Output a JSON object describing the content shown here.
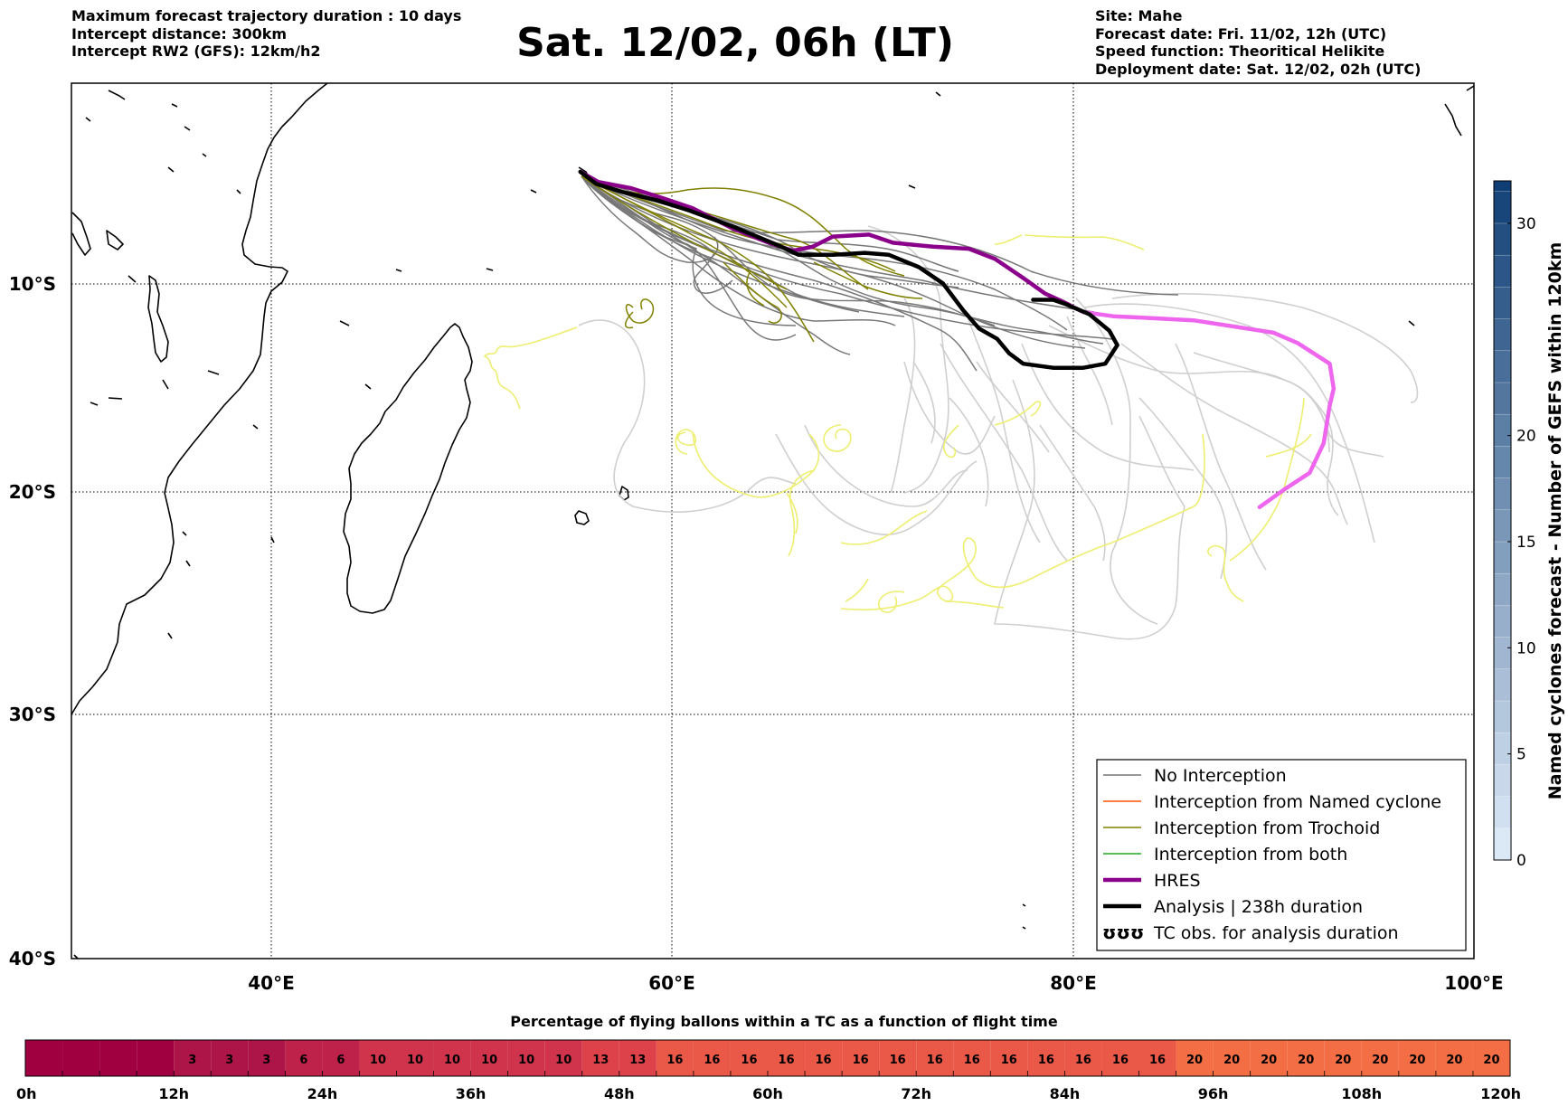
{
  "header": {
    "left_lines": [
      "Maximum forecast trajectory duration : 10 days",
      "Intercept distance: 300km",
      "Intercept RW2 (GFS):  12km/h2"
    ],
    "title": "Sat. 12/02, 06h (LT)",
    "right_lines": [
      "Site: Mahe",
      "Forecast date: Fri. 11/02, 12h (UTC)",
      "Speed function: Theoritical Helikite",
      "Deployment date: Sat. 12/02, 02h (UTC)"
    ]
  },
  "map": {
    "lon_range": [
      30,
      100
    ],
    "lat_range": [
      -40,
      -0.2
    ],
    "lon_ticks": [
      {
        "v": 40,
        "label": "40°E"
      },
      {
        "v": 60,
        "label": "60°E"
      },
      {
        "v": 80,
        "label": "80°E"
      },
      {
        "v": 100,
        "label": "100°E"
      }
    ],
    "lat_ticks": [
      {
        "v": -10,
        "label": "10°S"
      },
      {
        "v": -20,
        "label": "20°S"
      },
      {
        "v": -30,
        "label": "30°S"
      },
      {
        "v": -40,
        "label": "40°S"
      }
    ],
    "grid": "dotted",
    "land_color": "#000000"
  },
  "legend": {
    "items": [
      {
        "label": "No Interception",
        "color": "#777777",
        "style": "thin"
      },
      {
        "label": "Interception from Named cyclone",
        "color": "#ff5500",
        "style": "thin"
      },
      {
        "label": "Interception from Trochoid",
        "color": "#808000",
        "style": "thin"
      },
      {
        "label": "Interception from both",
        "color": "#22aa22",
        "style": "thin"
      },
      {
        "label": "HRES",
        "color": "#8b008b",
        "style": "thick"
      },
      {
        "label": "Analysis | 238h duration",
        "color": "#000000",
        "style": "thick"
      },
      {
        "label": "TC obs. for analysis duration",
        "color": "#000000",
        "style": "symbol",
        "symbol": "ʊʊʊ"
      }
    ]
  },
  "colorbar": {
    "label": "Named cyclones forecast - Number of GEFS within 120km",
    "min": 0,
    "max": 32,
    "ticks": [
      0,
      5,
      10,
      15,
      20,
      30
    ],
    "color_low": "#dbe8f6",
    "color_high": "#0b3b72"
  },
  "timebar": {
    "title": "Percentage of flying ballons within a TC as a function of flight time",
    "hours_max": 120,
    "step_h": 3,
    "values": [
      0,
      0,
      0,
      0,
      3,
      3,
      3,
      6,
      6,
      10,
      10,
      10,
      10,
      10,
      10,
      13,
      13,
      16,
      16,
      16,
      16,
      16,
      16,
      16,
      16,
      16,
      16,
      16,
      16,
      16,
      16,
      20,
      20,
      20,
      20,
      20,
      20,
      20,
      20,
      20,
      20
    ],
    "tick_labels": [
      "0h",
      "12h",
      "24h",
      "36h",
      "48h",
      "60h",
      "72h",
      "84h",
      "96h",
      "108h",
      "120h"
    ],
    "colors": {
      "0": "#a00040",
      "3": "#ad1448",
      "6": "#be2149",
      "10": "#d0344c",
      "13": "#dd424a",
      "16": "#ea5848",
      "20": "#f46e45"
    }
  },
  "chart_data": {
    "type": "line",
    "x_axis": "Longitude (°E)",
    "y_axis": "Latitude",
    "xlim": [
      30,
      100
    ],
    "ylim": [
      -40,
      -0.2
    ],
    "series": [
      {
        "name": "HRES",
        "color": "#8b008b",
        "x": [
          55.4,
          56.3,
          57.9,
          59.5,
          61.0,
          63.0,
          64.8,
          66.0,
          67.0,
          68.0,
          69.8,
          71.0,
          73.0,
          74.8,
          76.1,
          77.6,
          78.6,
          79.5,
          79.9
        ],
        "y": [
          -4.6,
          -5.1,
          -5.4,
          -5.9,
          -6.4,
          -7.4,
          -8.1,
          -8.5,
          -8.3,
          -7.8,
          -7.7,
          -8.1,
          -8.3,
          -8.4,
          -8.9,
          -9.9,
          -10.6,
          -11.0,
          -11.2
        ]
      },
      {
        "color": "#ee66ee",
        "x": [
          79.9,
          80.5,
          82.0,
          84.0,
          86.0,
          88.0,
          90.0,
          91.2,
          92.0,
          92.8,
          93.0,
          92.8,
          92.5,
          91.8,
          90.5,
          89.3
        ],
        "y": [
          -11.2,
          -11.5,
          -11.7,
          -11.8,
          -11.9,
          -12.2,
          -12.5,
          -13.0,
          -13.5,
          -14.0,
          -15.2,
          -16.0,
          -17.8,
          -19.2,
          -20.0,
          -20.8
        ]
      },
      {
        "name": "Analysis | 238h duration",
        "color": "#000000",
        "x": [
          55.4,
          56.2,
          57.5,
          59.2,
          60.8,
          63.0,
          65.2,
          66.3,
          68.0,
          69.6,
          70.8,
          72.3,
          73.5,
          74.5,
          75.3,
          76.2,
          76.8,
          77.5,
          79.0,
          80.5,
          81.6,
          82.2,
          81.8,
          80.8,
          79.6,
          79.0,
          78.0
        ],
        "y": [
          -4.6,
          -5.2,
          -5.6,
          -6.0,
          -6.5,
          -7.3,
          -8.2,
          -8.7,
          -8.7,
          -8.6,
          -8.7,
          -9.3,
          -10.1,
          -11.4,
          -12.3,
          -12.8,
          -13.5,
          -14.0,
          -14.2,
          -14.2,
          -14.0,
          -13.1,
          -12.4,
          -11.6,
          -11.1,
          -10.9,
          -10.9
        ]
      }
    ]
  }
}
